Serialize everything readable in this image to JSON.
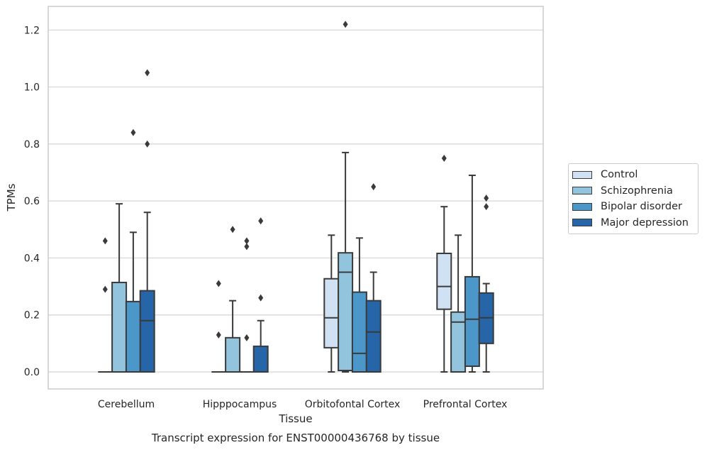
{
  "chart_data": {
    "type": "box",
    "title": "Transcript expression for ENST00000436768 by tissue",
    "xlabel": "Tissue",
    "ylabel": "TPMs",
    "ylim": [
      -0.06,
      1.28
    ],
    "yticks": [
      "0.0",
      "0.2",
      "0.4",
      "0.6",
      "0.8",
      "1.0",
      "1.2"
    ],
    "categories": [
      "Cerebellum",
      "Hipppocampus",
      "Orbitofontal Cortex",
      "Prefrontal Cortex"
    ],
    "grid": "horizontal",
    "legend_position": "right",
    "series": [
      {
        "name": "Control",
        "color": "#cfe1f2",
        "boxes": [
          {
            "q1": 0,
            "median": 0,
            "q3": 0,
            "whisker_low": 0,
            "whisker_high": 0,
            "outliers": [
              0.29,
              0.46
            ]
          },
          {
            "q1": 0,
            "median": 0,
            "q3": 0,
            "whisker_low": 0,
            "whisker_high": 0,
            "outliers": [
              0.13,
              0.31
            ]
          },
          {
            "q1": 0.085,
            "median": 0.19,
            "q3": 0.327,
            "whisker_low": 0,
            "whisker_high": 0.48,
            "outliers": []
          },
          {
            "q1": 0.22,
            "median": 0.3,
            "q3": 0.416,
            "whisker_low": 0,
            "whisker_high": 0.58,
            "outliers": [
              0.75
            ]
          }
        ]
      },
      {
        "name": "Schizophrenia",
        "color": "#93c4de",
        "boxes": [
          {
            "q1": 0,
            "median": 0,
            "q3": 0.314,
            "whisker_low": 0,
            "whisker_high": 0.59,
            "outliers": []
          },
          {
            "q1": 0,
            "median": 0,
            "q3": 0.12,
            "whisker_low": 0,
            "whisker_high": 0.25,
            "outliers": [
              0.5
            ]
          },
          {
            "q1": 0.005,
            "median": 0.35,
            "q3": 0.418,
            "whisker_low": 0,
            "whisker_high": 0.77,
            "outliers": [
              1.22
            ]
          },
          {
            "q1": 0,
            "median": 0.175,
            "q3": 0.21,
            "whisker_low": 0,
            "whisker_high": 0.48,
            "outliers": []
          }
        ]
      },
      {
        "name": "Bipolar disorder",
        "color": "#4b97c9",
        "boxes": [
          {
            "q1": 0,
            "median": 0,
            "q3": 0.247,
            "whisker_low": 0,
            "whisker_high": 0.49,
            "outliers": [
              0.84
            ]
          },
          {
            "q1": 0,
            "median": 0,
            "q3": 0,
            "whisker_low": 0,
            "whisker_high": 0,
            "outliers": [
              0.12,
              0.44,
              0.46
            ]
          },
          {
            "q1": 0,
            "median": 0.065,
            "q3": 0.28,
            "whisker_low": 0,
            "whisker_high": 0.47,
            "outliers": []
          },
          {
            "q1": 0.02,
            "median": 0.185,
            "q3": 0.334,
            "whisker_low": 0,
            "whisker_high": 0.69,
            "outliers": []
          }
        ]
      },
      {
        "name": "Major depression",
        "color": "#2565a8",
        "boxes": [
          {
            "q1": 0,
            "median": 0.18,
            "q3": 0.285,
            "whisker_low": 0,
            "whisker_high": 0.56,
            "outliers": [
              0.8,
              1.05
            ]
          },
          {
            "q1": 0,
            "median": 0,
            "q3": 0.09,
            "whisker_low": 0,
            "whisker_high": 0.18,
            "outliers": [
              0.26,
              0.53
            ]
          },
          {
            "q1": 0,
            "median": 0.14,
            "q3": 0.25,
            "whisker_low": 0,
            "whisker_high": 0.35,
            "outliers": [
              0.65
            ]
          },
          {
            "q1": 0.1,
            "median": 0.19,
            "q3": 0.277,
            "whisker_low": 0,
            "whisker_high": 0.31,
            "outliers": [
              0.58,
              0.61
            ]
          }
        ]
      }
    ]
  }
}
